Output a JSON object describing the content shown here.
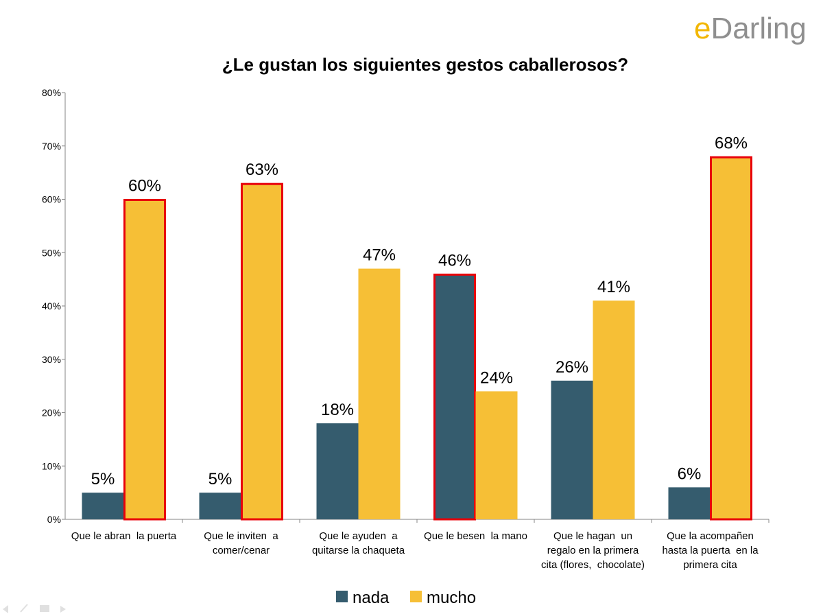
{
  "logo": {
    "text_e": "e",
    "text_rest": "Darling",
    "color_e": "#f2b705",
    "color_rest": "#8f8f8f"
  },
  "chart_data": {
    "type": "bar",
    "title": "¿Le gustan los siguientes gestos caballerosos?",
    "xlabel": "",
    "ylabel": "",
    "ylim": [
      0,
      80
    ],
    "yticks": [
      0,
      10,
      20,
      30,
      40,
      50,
      60,
      70,
      80
    ],
    "ytick_labels": [
      "0%",
      "10%",
      "20%",
      "30%",
      "40%",
      "50%",
      "60%",
      "70%",
      "80%"
    ],
    "grid": false,
    "legend_position": "bottom",
    "categories": [
      [
        "Que le abran  la puerta"
      ],
      [
        "Que le inviten  a",
        "comer/cenar"
      ],
      [
        "Que le ayuden  a",
        "quitarse la chaqueta"
      ],
      [
        "Que le besen  la mano"
      ],
      [
        "Que le hagan  un",
        "regalo en la primera",
        "cita (flores,  chocolate)"
      ],
      [
        "Que la acompañen",
        "hasta la puerta  en la",
        "primera cita"
      ]
    ],
    "series": [
      {
        "name": "nada",
        "color": "#355c6e",
        "values": [
          5,
          5,
          18,
          46,
          26,
          6
        ],
        "labels": [
          "5%",
          "5%",
          "18%",
          "46%",
          "26%",
          "6%"
        ],
        "highlighted": [
          false,
          false,
          false,
          true,
          false,
          false
        ]
      },
      {
        "name": "mucho",
        "color": "#f6bf36",
        "values": [
          60,
          63,
          47,
          24,
          41,
          68
        ],
        "labels": [
          "60%",
          "63%",
          "47%",
          "24%",
          "41%",
          "68%"
        ],
        "highlighted": [
          true,
          true,
          false,
          false,
          false,
          true
        ]
      }
    ],
    "highlight_color": "#e8000b"
  }
}
